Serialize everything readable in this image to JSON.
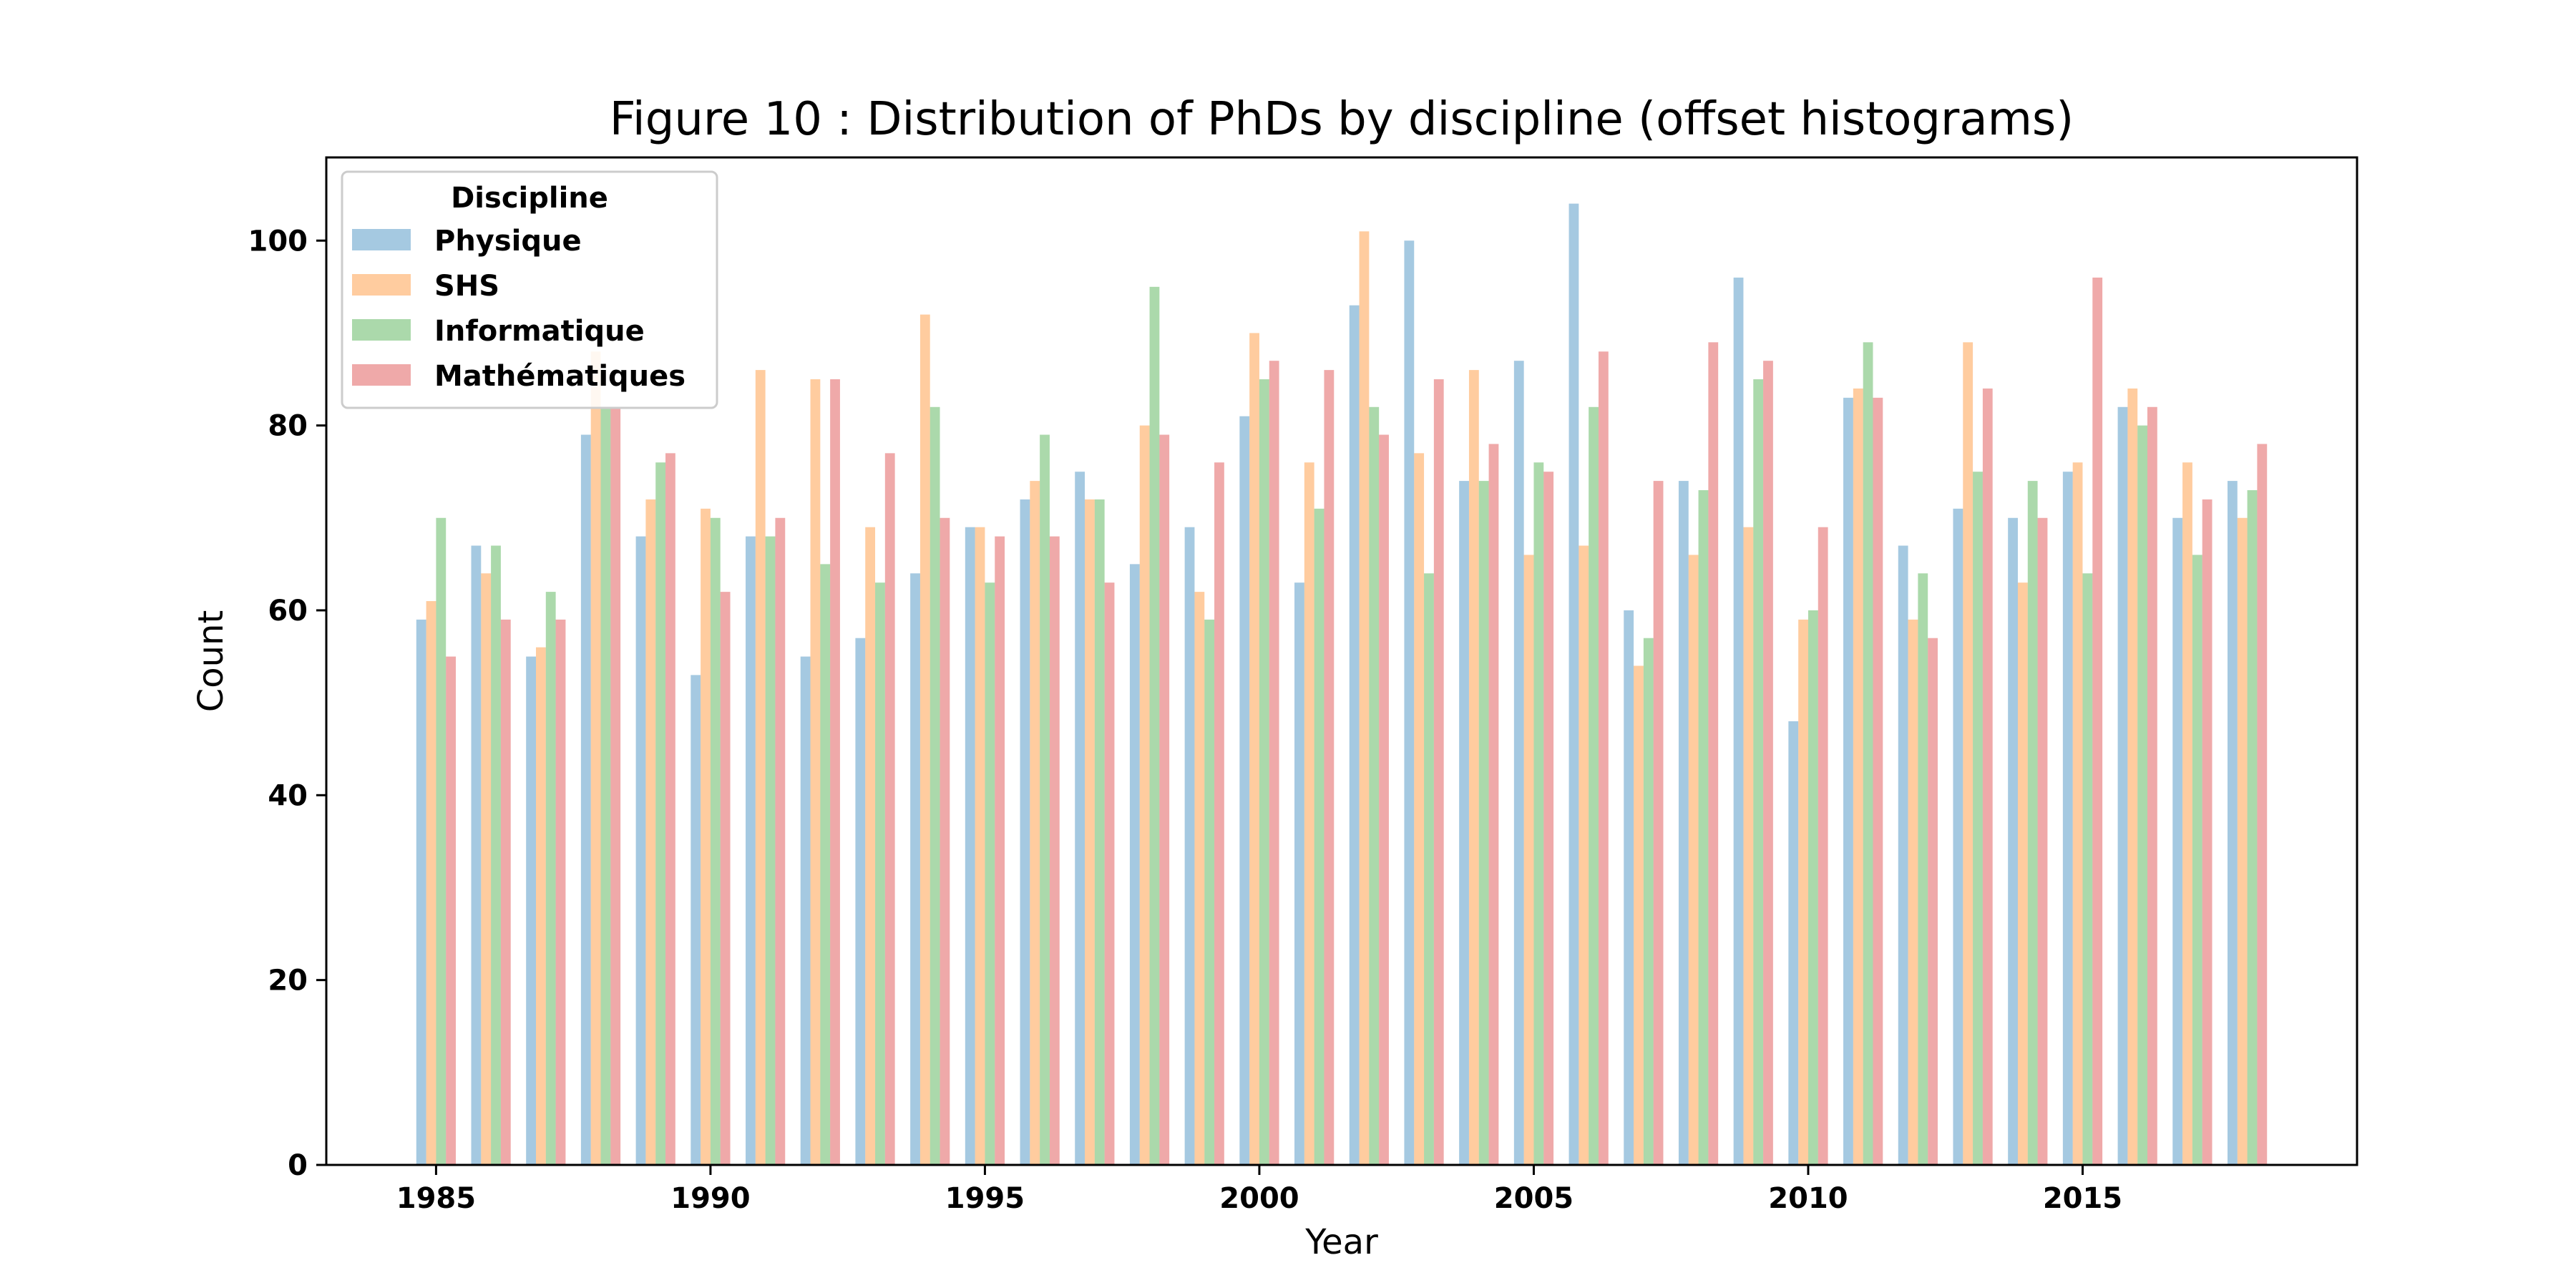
{
  "chart_data": {
    "type": "bar",
    "title": "Figure 10 : Distribution of PhDs by discipline (offset histograms)",
    "xlabel": "Year",
    "ylabel": "Count",
    "ylim": [
      0,
      109
    ],
    "xlim": [
      1983,
      2020
    ],
    "yticks": [
      0,
      20,
      40,
      60,
      80,
      100
    ],
    "xticks": [
      1985,
      1990,
      1995,
      2000,
      2005,
      2010,
      2015
    ],
    "grid": false,
    "legend": {
      "title": "Discipline",
      "placement": "top-left"
    },
    "x": [
      1985,
      1986,
      1987,
      1988,
      1989,
      1990,
      1991,
      1992,
      1993,
      1994,
      1995,
      1996,
      1997,
      1998,
      1999,
      2000,
      2001,
      2002,
      2003,
      2004,
      2005,
      2006,
      2007,
      2008,
      2009,
      2010,
      2011,
      2012,
      2013,
      2014,
      2015,
      2016,
      2017,
      2018
    ],
    "series": [
      {
        "name": "Physique",
        "color": "#1f77b4",
        "values": [
          59,
          67,
          55,
          79,
          68,
          53,
          68,
          55,
          57,
          64,
          69,
          72,
          75,
          65,
          69,
          81,
          63,
          93,
          100,
          74,
          87,
          104,
          60,
          74,
          96,
          48,
          83,
          67,
          71,
          70,
          75,
          82,
          70,
          74
        ]
      },
      {
        "name": "SHS",
        "color": "#ff7f0e",
        "values": [
          61,
          64,
          56,
          88,
          72,
          71,
          86,
          85,
          69,
          92,
          69,
          74,
          72,
          80,
          62,
          90,
          76,
          101,
          77,
          86,
          66,
          67,
          54,
          66,
          69,
          59,
          84,
          59,
          89,
          63,
          76,
          84,
          76,
          70
        ]
      },
      {
        "name": "Informatique",
        "color": "#2ca02c",
        "values": [
          70,
          67,
          62,
          82,
          76,
          70,
          68,
          65,
          63,
          82,
          63,
          79,
          72,
          95,
          59,
          85,
          71,
          82,
          64,
          74,
          76,
          82,
          57,
          73,
          85,
          60,
          89,
          64,
          75,
          74,
          64,
          80,
          66,
          73
        ]
      },
      {
        "name": "Mathématiques",
        "color": "#d62728",
        "values": [
          55,
          59,
          59,
          82,
          77,
          62,
          70,
          85,
          77,
          70,
          68,
          68,
          63,
          79,
          76,
          87,
          86,
          79,
          85,
          78,
          75,
          88,
          74,
          89,
          87,
          69,
          83,
          57,
          84,
          70,
          96,
          82,
          72,
          78
        ]
      }
    ]
  }
}
